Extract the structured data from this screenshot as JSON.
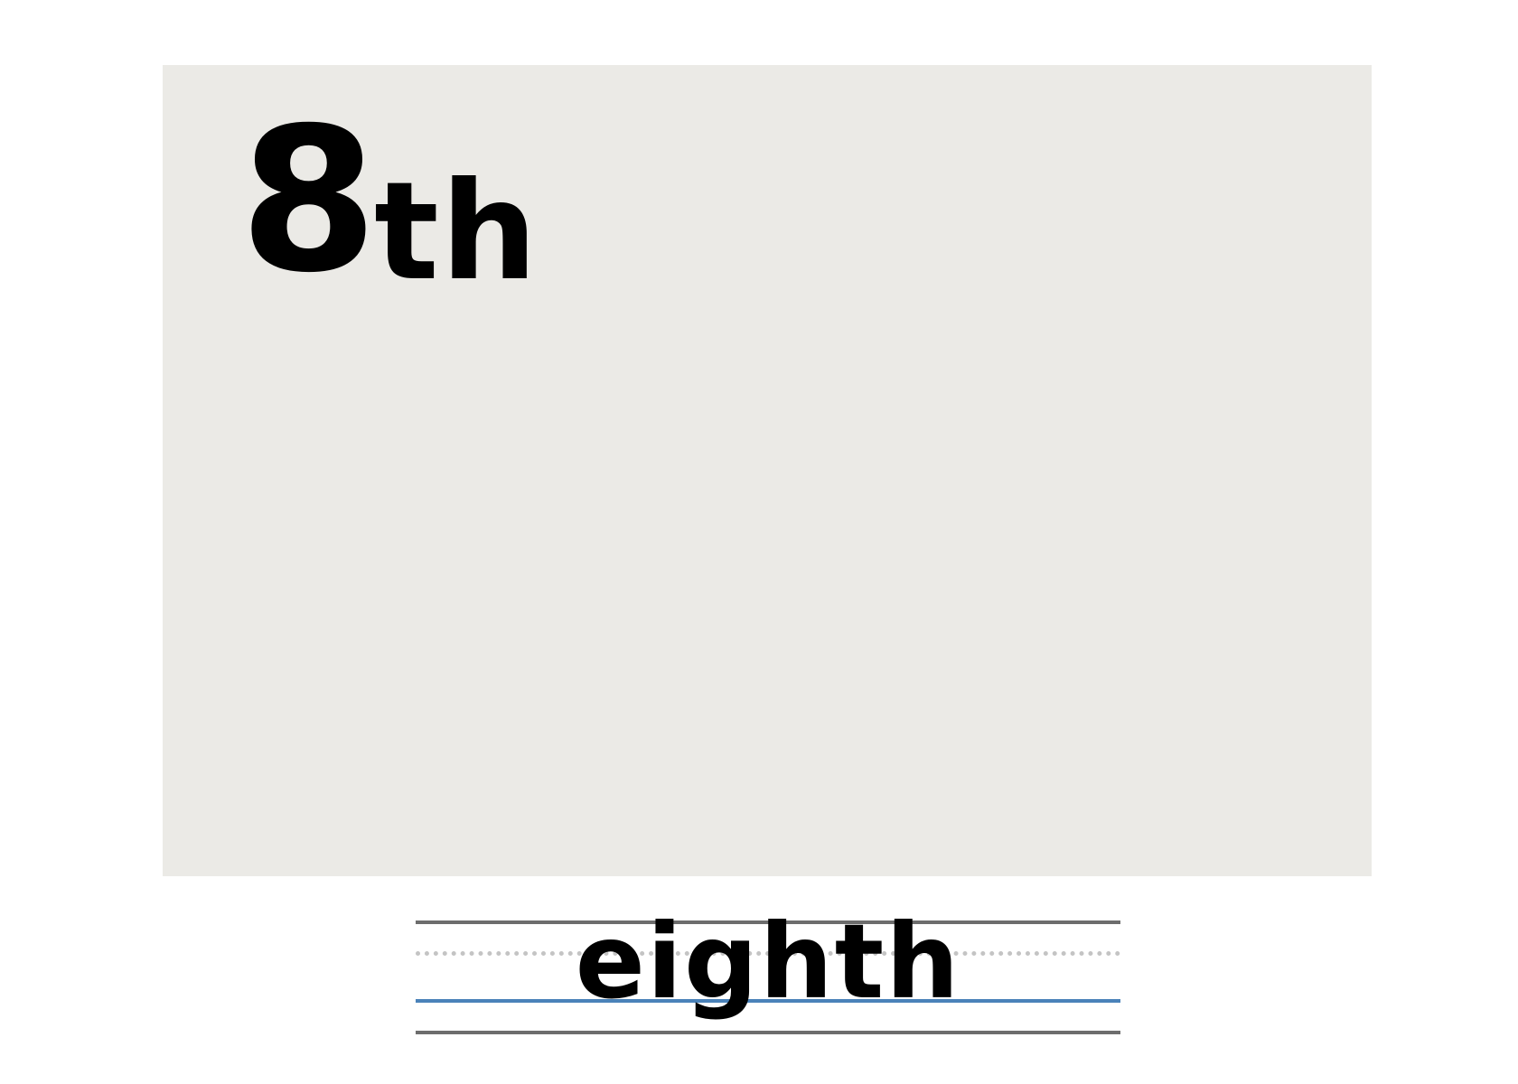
{
  "card": {
    "number": "8",
    "suffix": "th"
  },
  "handwriting": {
    "word": "eighth"
  },
  "colors": {
    "card_background": "#ebeae6",
    "guide_line": "#6d6d6d",
    "dotted_midline": "#c4c4c4",
    "baseline": "#4a82b9",
    "text": "#000000"
  }
}
